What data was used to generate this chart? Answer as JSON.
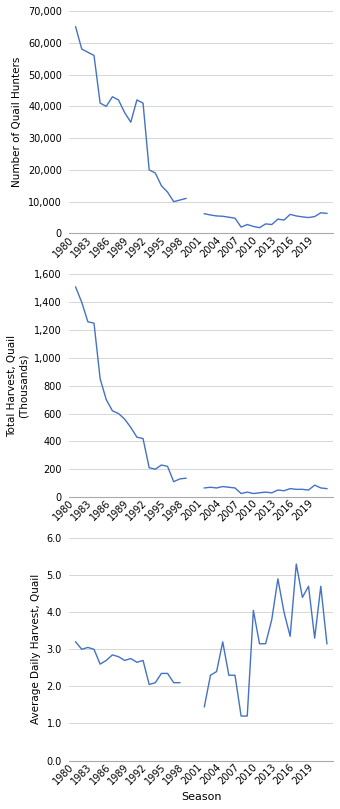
{
  "seasons": [
    1980,
    1981,
    1982,
    1983,
    1984,
    1985,
    1986,
    1987,
    1988,
    1989,
    1990,
    1991,
    1992,
    1993,
    1994,
    1995,
    1996,
    1997,
    1998,
    1999,
    2000,
    2001,
    2002,
    2003,
    2004,
    2005,
    2006,
    2007,
    2008,
    2009,
    2010,
    2011,
    2012,
    2013,
    2014,
    2015,
    2016,
    2017,
    2018,
    2019,
    2020,
    2021
  ],
  "hunters": [
    65000,
    58000,
    57000,
    56000,
    41000,
    40000,
    43000,
    42000,
    38000,
    35000,
    42000,
    41000,
    20000,
    19000,
    15000,
    13000,
    10000,
    10500,
    11000,
    null,
    null,
    6200,
    5800,
    5500,
    5400,
    5100,
    4800,
    2000,
    2800,
    2200,
    1800,
    3000,
    2800,
    4500,
    4200,
    6000,
    5500,
    5200,
    5000,
    5300,
    6500,
    6300
  ],
  "total_harvest": [
    1510,
    1400,
    1260,
    1250,
    850,
    700,
    620,
    600,
    560,
    500,
    430,
    420,
    210,
    200,
    230,
    220,
    110,
    130,
    135,
    null,
    null,
    65,
    70,
    65,
    75,
    70,
    65,
    25,
    35,
    25,
    30,
    35,
    30,
    50,
    45,
    60,
    55,
    55,
    50,
    85,
    65,
    60
  ],
  "avg_daily": [
    3.2,
    3.0,
    3.05,
    3.0,
    2.6,
    2.7,
    2.85,
    2.8,
    2.7,
    2.75,
    2.65,
    2.7,
    2.05,
    2.1,
    2.35,
    2.35,
    2.1,
    2.1,
    null,
    null,
    null,
    1.45,
    2.3,
    2.4,
    3.2,
    2.3,
    2.3,
    1.2,
    1.2,
    4.05,
    3.15,
    3.15,
    3.8,
    4.9,
    4.0,
    3.35,
    5.3,
    4.4,
    4.7,
    3.3,
    4.7,
    3.15
  ],
  "line_color": "#4472C4",
  "background_color": "#ffffff",
  "ylabel1": "Number of Quail Hunters",
  "ylabel2": "Total Harvest, Quail\n(Thousands)",
  "ylabel3": "Average Daily Harvest, Quail",
  "xlabel": "Season",
  "ylim1": [
    0,
    70000
  ],
  "ylim2": [
    0,
    1600
  ],
  "ylim3": [
    0.0,
    6.0
  ],
  "yticks1": [
    0,
    10000,
    20000,
    30000,
    40000,
    50000,
    60000,
    70000
  ],
  "yticks2": [
    0,
    200,
    400,
    600,
    800,
    1000,
    1200,
    1400,
    1600
  ],
  "yticks3": [
    0.0,
    1.0,
    2.0,
    3.0,
    4.0,
    5.0,
    6.0
  ],
  "xtick_years": [
    1980,
    1983,
    1986,
    1989,
    1992,
    1995,
    1998,
    2001,
    2004,
    2007,
    2010,
    2013,
    2016,
    2019
  ],
  "spine_color": "#aaaaaa",
  "grid_color": "#d0d0d0"
}
